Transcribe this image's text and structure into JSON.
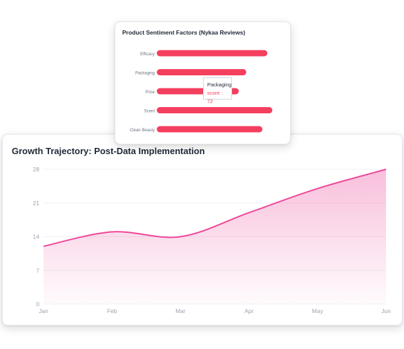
{
  "chart_data": [
    {
      "type": "bar",
      "orientation": "horizontal",
      "title": "Product Sentiment Factors (Nykaa Reviews)",
      "categories": [
        "Efficacy",
        "Packaging",
        "Price",
        "Scent",
        "Clean Beauty"
      ],
      "series": [
        {
          "name": "score",
          "values": [
            89,
            72,
            66,
            93,
            85
          ]
        }
      ],
      "xlim": [
        0,
        100
      ],
      "grid": false,
      "color": "#f43f5e",
      "tooltip": {
        "label": "Packaging",
        "series": "score",
        "value": 72,
        "text": "score : 72"
      }
    },
    {
      "type": "area",
      "title": "Growth Trajectory: Post-Data Implementation",
      "categories": [
        "Jan",
        "Feb",
        "Mar",
        "Apr",
        "May",
        "Jun"
      ],
      "series": [
        {
          "values": [
            12,
            15,
            14,
            19,
            24,
            28
          ]
        }
      ],
      "ylim": [
        0,
        28
      ],
      "yticks": [
        0,
        7,
        14,
        21,
        28
      ],
      "grid": true,
      "color": "#ec4899"
    }
  ]
}
